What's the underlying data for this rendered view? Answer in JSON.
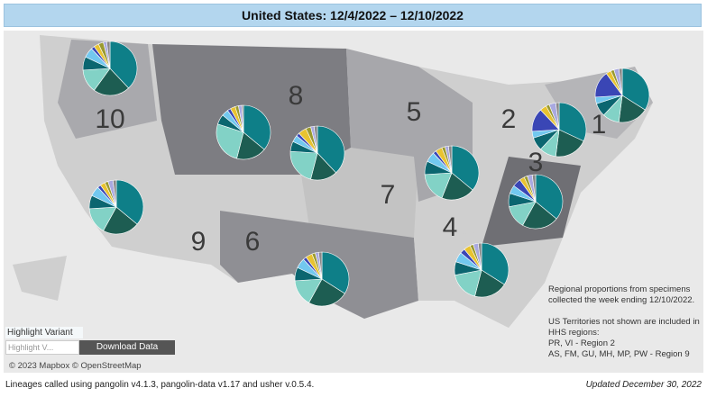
{
  "title": "United States: 12/4/2022 – 12/10/2022",
  "slice_colors": [
    "#0e7f88",
    "#1d5d52",
    "#82d2c6",
    "#0b6670",
    "#72c8ef",
    "#3a46b5",
    "#e8c330",
    "#9a9a30",
    "#a9a9e0",
    "#888888"
  ],
  "regions": [
    {
      "label": "1",
      "shares": [
        34,
        18,
        10,
        8,
        4,
        16,
        3,
        2,
        3,
        2
      ]
    },
    {
      "label": "2",
      "shares": [
        32,
        20,
        10,
        8,
        4,
        14,
        4,
        2,
        4,
        2
      ]
    },
    {
      "label": "3",
      "shares": [
        36,
        22,
        14,
        8,
        5,
        5,
        3,
        2,
        3,
        2
      ]
    },
    {
      "label": "4",
      "shares": [
        34,
        20,
        18,
        8,
        6,
        3,
        4,
        2,
        3,
        2
      ]
    },
    {
      "label": "5",
      "shares": [
        36,
        20,
        18,
        8,
        6,
        2,
        4,
        2,
        2,
        2
      ]
    },
    {
      "label": "6",
      "shares": [
        34,
        24,
        16,
        8,
        6,
        2,
        4,
        2,
        2,
        2
      ]
    },
    {
      "label": "7",
      "shares": [
        38,
        16,
        22,
        6,
        4,
        2,
        5,
        3,
        2,
        2
      ]
    },
    {
      "label": "8",
      "shares": [
        36,
        18,
        26,
        6,
        4,
        2,
        3,
        2,
        2,
        1
      ]
    },
    {
      "label": "9",
      "shares": [
        36,
        22,
        16,
        8,
        6,
        2,
        3,
        2,
        3,
        2
      ]
    },
    {
      "label": "10",
      "shares": [
        38,
        22,
        14,
        8,
        6,
        2,
        3,
        3,
        2,
        2
      ]
    }
  ],
  "note": [
    "Regional proportions from specimens",
    "collected the week ending 12/10/2022.",
    "",
    "US Territories not shown are included in",
    "HHS regions:",
    "PR, VI - Region 2",
    "AS, FM, GU, MH, MP, PW - Region 9"
  ],
  "highlight": {
    "label": "Highlight Variant",
    "placeholder": "Highlight V..."
  },
  "download_button": "Download Data",
  "attribution": "© 2023 Mapbox © OpenStreetMap",
  "footer": {
    "left": "Lineages called using pangolin v4.1.3, pangolin-data v1.17 and usher v.0.5.4.",
    "right": "Updated December 30, 2022"
  }
}
